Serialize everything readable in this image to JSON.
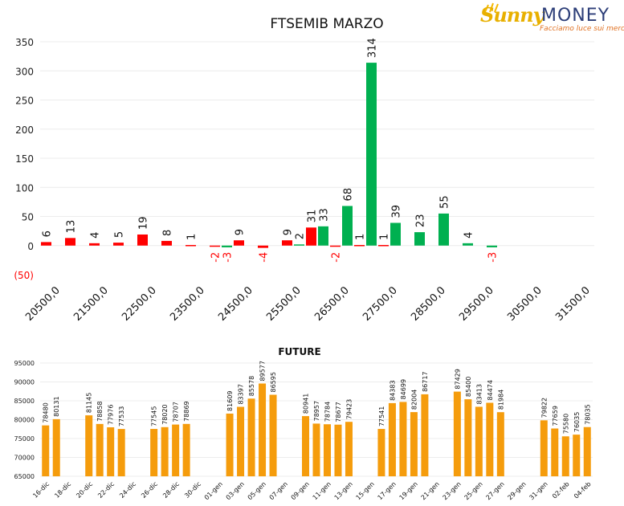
{
  "logo": {
    "brand_left": "Sunny",
    "brand_right": "MONEY",
    "tagline": "Facciamo luce sui mercati"
  },
  "colors": {
    "positive": "#00b050",
    "negative": "#ff0000",
    "future": "#f59c0c",
    "neg_label": "#ff0000"
  },
  "chart_data": [
    {
      "type": "bar",
      "title": "FTSEMIB MARZO",
      "ylim": [
        -50,
        350
      ],
      "yticks": [
        "(50)",
        "0",
        "50",
        "100",
        "150",
        "200",
        "250",
        "300",
        "350"
      ],
      "xticklabels": [
        "20500,0",
        "21500,0",
        "22500,0",
        "23500,0",
        "24500,0",
        "25500,0",
        "26500,0",
        "27500,0",
        "28500,0",
        "29500,0",
        "30500,0",
        "31500,0"
      ],
      "strikes": [
        20500,
        21000,
        21500,
        22000,
        22500,
        23000,
        23500,
        24000,
        24500,
        25000,
        25500,
        26000,
        26500,
        27000,
        27500,
        28000,
        28500,
        29000,
        29500,
        30000,
        30500,
        31000,
        31500
      ],
      "series": [
        {
          "color": "red",
          "values": [
            6,
            13,
            4,
            5,
            19,
            8,
            1,
            -2,
            9,
            -4,
            9,
            31,
            -2,
            1,
            1,
            null,
            null,
            null,
            null,
            null,
            null,
            null,
            null
          ],
          "labels": [
            "6",
            "13",
            "4",
            "5",
            "19",
            "8",
            "1",
            "-2",
            "9",
            "-4",
            "9",
            "31",
            "-2",
            "1",
            "1",
            "",
            "",
            "",
            "",
            "",
            "",
            "",
            ""
          ]
        },
        {
          "color": "green",
          "values": [
            null,
            null,
            null,
            null,
            null,
            null,
            null,
            -3,
            null,
            null,
            2,
            33,
            68,
            314,
            39,
            23,
            55,
            4,
            -3,
            null,
            null,
            null,
            null
          ],
          "labels": [
            "",
            "",
            "",
            "",
            "",
            "",
            "",
            "-3",
            "",
            "",
            "2",
            "33",
            "68",
            "314",
            "39",
            "23",
            "55",
            "4",
            "-3",
            "",
            "",
            "",
            ""
          ]
        }
      ]
    },
    {
      "type": "bar",
      "title": "FUTURE",
      "ylim": [
        65000,
        95000
      ],
      "yticks": [
        "65000",
        "70000",
        "75000",
        "80000",
        "85000",
        "90000",
        "95000"
      ],
      "xticklabels": [
        "16-dic",
        "18-dic",
        "20-dic",
        "22-dic",
        "24-dic",
        "26-dic",
        "28-dic",
        "30-dic",
        "01-gen",
        "03-gen",
        "05-gen",
        "07-gen",
        "09-gen",
        "11-gen",
        "13-gen",
        "15-gen",
        "17-gen",
        "19-gen",
        "21-gen",
        "23-gen",
        "25-gen",
        "27-gen",
        "29-gen",
        "31-gen",
        "02-feb",
        "04-feb"
      ],
      "values": [
        78480,
        80131,
        null,
        null,
        81145,
        78858,
        77976,
        77533,
        null,
        null,
        77545,
        78020,
        78707,
        78869,
        null,
        null,
        null,
        81609,
        83397,
        85578,
        89577,
        86595,
        null,
        null,
        80941,
        78957,
        78784,
        78677,
        79423,
        null,
        null,
        77541,
        84383,
        84699,
        82004,
        86717,
        null,
        null,
        87429,
        85400,
        83413,
        84474,
        81984,
        null,
        null,
        null,
        79822,
        77659,
        75580,
        76035,
        78035
      ]
    }
  ]
}
